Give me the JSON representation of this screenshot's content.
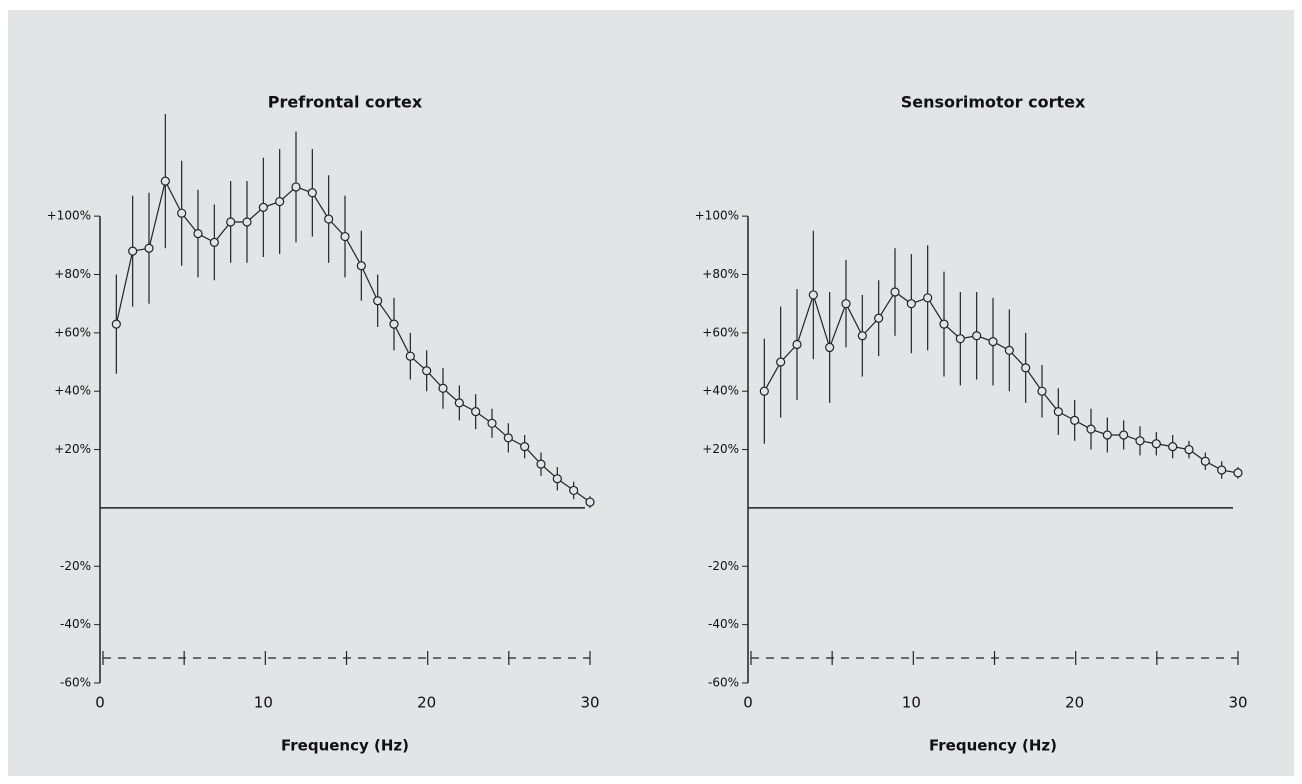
{
  "chart_data": [
    {
      "type": "line",
      "title": "Prefrontal cortex",
      "x_label": "Frequency (Hz)",
      "color": "#222222",
      "x": [
        1,
        2,
        3,
        4,
        5,
        6,
        7,
        8,
        9,
        10,
        11,
        12,
        13,
        14,
        15,
        16,
        17,
        18,
        19,
        20,
        21,
        22,
        23,
        24,
        25,
        26,
        27,
        28,
        29,
        30
      ],
      "values": [
        63,
        88,
        89,
        112,
        101,
        94,
        91,
        98,
        98,
        103,
        105,
        110,
        108,
        99,
        93,
        83,
        71,
        63,
        52,
        47,
        41,
        36,
        33,
        29,
        24,
        21,
        15,
        10,
        6,
        2
      ],
      "errors": [
        17,
        19,
        19,
        23,
        18,
        15,
        13,
        14,
        14,
        17,
        18,
        19,
        15,
        15,
        14,
        12,
        9,
        9,
        8,
        7,
        7,
        6,
        6,
        5,
        5,
        4,
        4,
        4,
        3,
        2
      ],
      "xlim": [
        0,
        30
      ],
      "xticks": [
        0,
        10,
        20,
        30
      ],
      "ylim": [
        -60,
        135
      ],
      "yticks": [
        {
          "value": 100,
          "label": "+100%"
        },
        {
          "value": 80,
          "label": "+80%"
        },
        {
          "value": 60,
          "label": "+60%"
        },
        {
          "value": 40,
          "label": "+40%"
        },
        {
          "value": 20,
          "label": "+20%"
        },
        {
          "value": -20,
          "label": "-20%"
        },
        {
          "value": -40,
          "label": "-40%"
        },
        {
          "value": -60,
          "label": "-60%"
        }
      ]
    },
    {
      "type": "line",
      "title": "Sensorimotor cortex",
      "x_label": "Frequency (Hz)",
      "color": "#222222",
      "x": [
        1,
        2,
        3,
        4,
        5,
        6,
        7,
        8,
        9,
        10,
        11,
        12,
        13,
        14,
        15,
        16,
        17,
        18,
        19,
        20,
        21,
        22,
        23,
        24,
        25,
        26,
        27,
        28,
        29,
        30
      ],
      "values": [
        40,
        50,
        56,
        73,
        55,
        70,
        59,
        65,
        74,
        70,
        72,
        63,
        58,
        59,
        57,
        54,
        48,
        40,
        33,
        30,
        27,
        25,
        25,
        23,
        22,
        21,
        20,
        16,
        13,
        12
      ],
      "errors": [
        18,
        19,
        19,
        22,
        19,
        15,
        14,
        13,
        15,
        17,
        18,
        18,
        16,
        15,
        15,
        14,
        12,
        9,
        8,
        7,
        7,
        6,
        5,
        5,
        4,
        4,
        3,
        3,
        3,
        2
      ],
      "xlim": [
        0,
        30
      ],
      "xticks": [
        0,
        10,
        20,
        30
      ],
      "ylim": [
        -60,
        135
      ],
      "yticks": [
        {
          "value": 100,
          "label": "+100%"
        },
        {
          "value": 80,
          "label": "+80%"
        },
        {
          "value": 60,
          "label": "+60%"
        },
        {
          "value": 40,
          "label": "+40%"
        },
        {
          "value": 20,
          "label": "+20%"
        },
        {
          "value": -20,
          "label": "-20%"
        },
        {
          "value": -40,
          "label": "-40%"
        },
        {
          "value": -60,
          "label": "-60%"
        }
      ]
    }
  ]
}
